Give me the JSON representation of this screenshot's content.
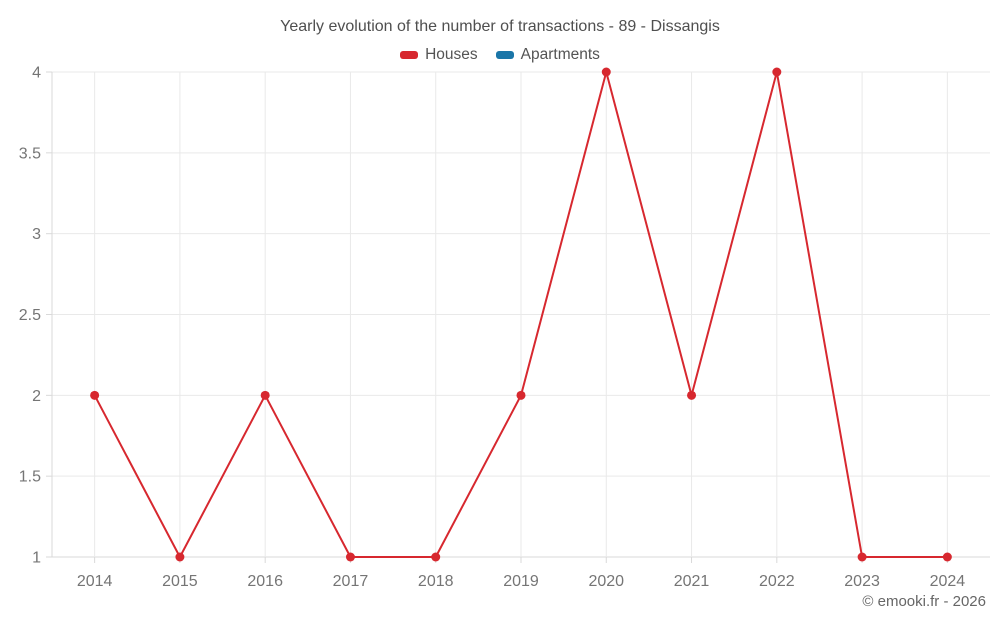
{
  "title": "Yearly evolution of the number of transactions - 89 - Dissangis",
  "copyright": "© emooki.fr - 2026",
  "legend": [
    {
      "label": "Houses",
      "color": "#d7282f"
    },
    {
      "label": "Apartments",
      "color": "#1b76a8"
    }
  ],
  "colors": {
    "grid": "#e9e9e9",
    "axis": "#d9d9d9",
    "tick_label": "#757575",
    "houses": "#d7282f",
    "apartments": "#1b76a8"
  },
  "chart_data": {
    "type": "line",
    "title": "Yearly evolution of the number of transactions - 89 - Dissangis",
    "xlabel": "",
    "ylabel": "",
    "x": [
      2014,
      2015,
      2016,
      2017,
      2018,
      2019,
      2020,
      2021,
      2022,
      2023,
      2024
    ],
    "series": [
      {
        "name": "Houses",
        "color": "#d7282f",
        "values": [
          2,
          1,
          2,
          1,
          1,
          2,
          4,
          2,
          4,
          1,
          1
        ]
      },
      {
        "name": "Apartments",
        "color": "#1b76a8",
        "values": []
      }
    ],
    "ylim": [
      1,
      4
    ],
    "ytick_step": 0.5,
    "yticks": [
      1,
      1.5,
      2,
      2.5,
      3,
      3.5,
      4
    ],
    "grid": true,
    "legend_position": "top"
  }
}
